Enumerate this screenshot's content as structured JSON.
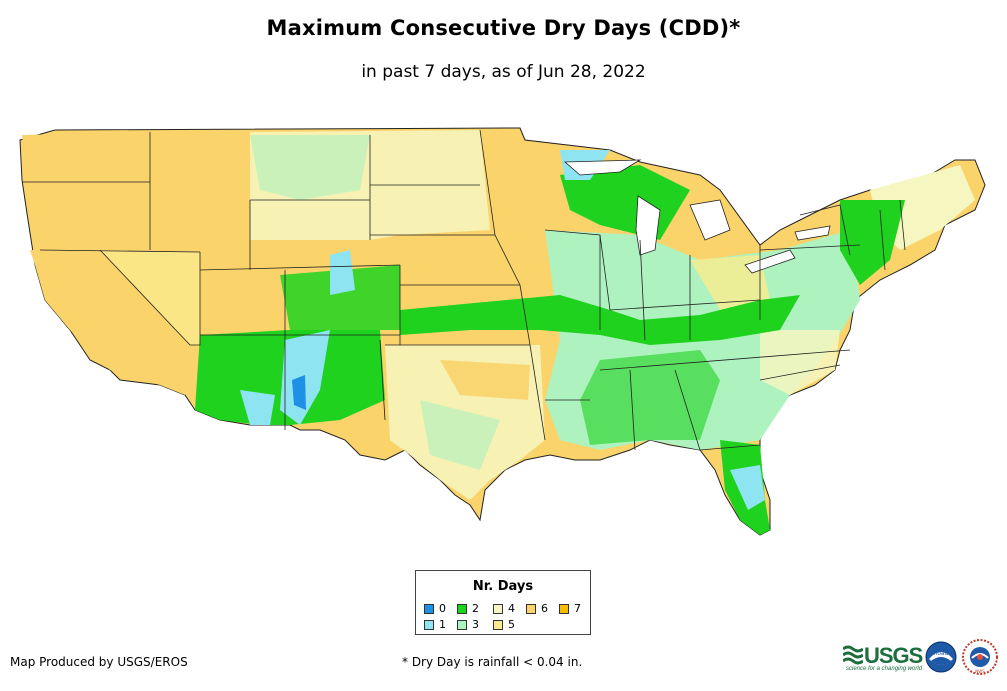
{
  "title": "Maximum Consecutive Dry Days (CDD)*",
  "subtitle": "in past 7 days, as of Jun 28, 2022",
  "legend": {
    "title": "Nr. Days",
    "items": [
      {
        "label": "0",
        "color": "#1e90e6"
      },
      {
        "label": "1",
        "color": "#8fe4f2"
      },
      {
        "label": "2",
        "color": "#1ed21e"
      },
      {
        "label": "3",
        "color": "#aef2c0"
      },
      {
        "label": "4",
        "color": "#f6f6c0"
      },
      {
        "label": "5",
        "color": "#faec8c"
      },
      {
        "label": "6",
        "color": "#fad36b"
      },
      {
        "label": "7",
        "color": "#f7bb00"
      }
    ]
  },
  "footer": {
    "credit": "Map Produced by USGS/EROS",
    "footnote": "* Dry Day is rainfall < 0.04 in."
  },
  "logos": {
    "usgs": "USGS",
    "usgs_tagline": "science for a changing world",
    "noaa": "noaa",
    "nws": "NWS"
  },
  "icons": [
    "usgs-logo-icon",
    "noaa-logo-icon",
    "nws-logo-icon"
  ]
}
